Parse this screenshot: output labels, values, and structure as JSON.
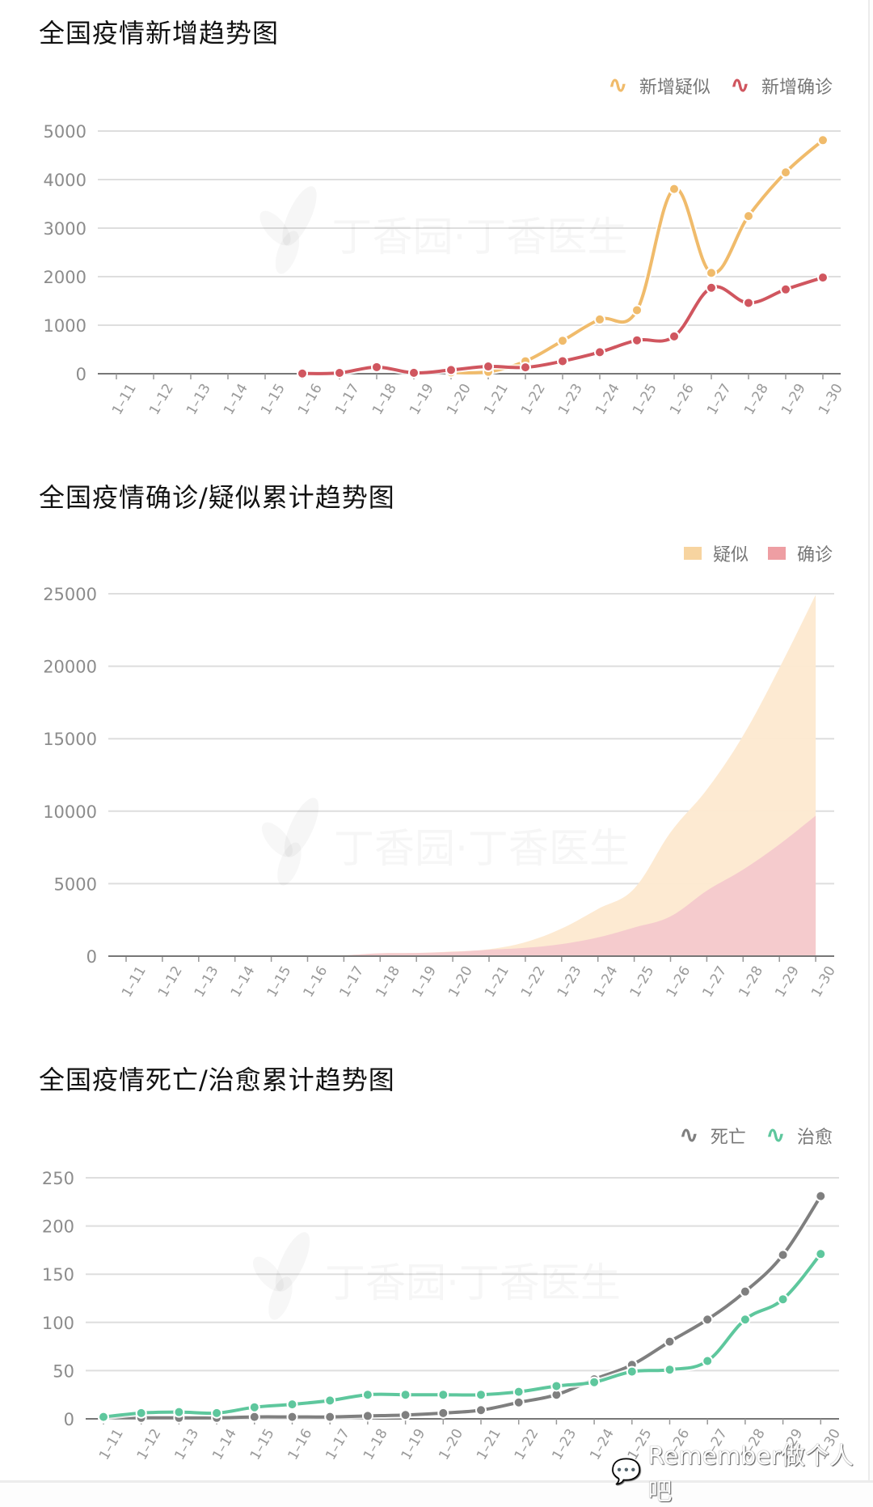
{
  "dates": [
    "1-11",
    "1-12",
    "1-13",
    "1-14",
    "1-15",
    "1-16",
    "1-17",
    "1-18",
    "1-19",
    "1-20",
    "1-21",
    "1-22",
    "1-23",
    "1-24",
    "1-25",
    "1-26",
    "1-27",
    "1-28",
    "1-29",
    "1-30"
  ],
  "watermark": "丁香园·丁香医生",
  "footer_watermark": {
    "icon": "wechat-icon",
    "text": "Remember做个人吧"
  },
  "charts": {
    "new": {
      "title": "全国疫情新增趋势图",
      "legend": [
        {
          "label": "新增疑似",
          "color": "#f0bb6b",
          "icon": "wave-line-icon"
        },
        {
          "label": "新增确诊",
          "color": "#d0565f",
          "icon": "wave-line-icon"
        }
      ],
      "yticks": [
        "5000",
        "4000",
        "3000",
        "2000",
        "1000",
        "0"
      ]
    },
    "cumulative": {
      "title": "全国疫情确诊/疑似累计趋势图",
      "legend": [
        {
          "label": "疑似",
          "color": "#f7d4a0",
          "icon": "square-swatch-icon"
        },
        {
          "label": "确诊",
          "color": "#ee9ea3",
          "icon": "square-swatch-icon"
        }
      ],
      "yticks": [
        "25000",
        "20000",
        "15000",
        "10000",
        "5000",
        "0"
      ]
    },
    "death_cure": {
      "title": "全国疫情死亡/治愈累计趋势图",
      "legend": [
        {
          "label": "死亡",
          "color": "#7f7f7f",
          "icon": "wave-line-icon"
        },
        {
          "label": "治愈",
          "color": "#5ec79d",
          "icon": "wave-line-icon"
        }
      ],
      "yticks": [
        "250",
        "200",
        "150",
        "100",
        "50",
        "0"
      ]
    }
  },
  "chart_data": [
    {
      "type": "line",
      "title": "全国疫情新增趋势图",
      "xlabel": "",
      "ylabel": "",
      "categories": [
        "1-11",
        "1-12",
        "1-13",
        "1-14",
        "1-15",
        "1-16",
        "1-17",
        "1-18",
        "1-19",
        "1-20",
        "1-21",
        "1-22",
        "1-23",
        "1-24",
        "1-25",
        "1-26",
        "1-27",
        "1-28",
        "1-29",
        "1-30"
      ],
      "ylim": [
        0,
        5000
      ],
      "grid": true,
      "legend_position": "top-right",
      "series": [
        {
          "name": "新增疑似",
          "color": "#f0bb6b",
          "smooth": true,
          "values": [
            null,
            null,
            null,
            null,
            null,
            null,
            null,
            null,
            null,
            27,
            39,
            257,
            680,
            1118,
            1309,
            3806,
            2077,
            3248,
            4148,
            4812
          ]
        },
        {
          "name": "新增确诊",
          "color": "#d0565f",
          "smooth": true,
          "values": [
            null,
            null,
            null,
            null,
            null,
            4,
            17,
            136,
            19,
            77,
            149,
            131,
            259,
            444,
            688,
            769,
            1771,
            1459,
            1737,
            1982
          ]
        }
      ]
    },
    {
      "type": "area",
      "stacked": true,
      "title": "全国疫情确诊/疑似累计趋势图",
      "xlabel": "",
      "ylabel": "",
      "categories": [
        "1-11",
        "1-12",
        "1-13",
        "1-14",
        "1-15",
        "1-16",
        "1-17",
        "1-18",
        "1-19",
        "1-20",
        "1-21",
        "1-22",
        "1-23",
        "1-24",
        "1-25",
        "1-26",
        "1-27",
        "1-28",
        "1-29",
        "1-30"
      ],
      "ylim": [
        0,
        25000
      ],
      "grid": true,
      "legend_position": "top-right",
      "series": [
        {
          "name": "确诊",
          "color": "#f4c9cc",
          "values": [
            41,
            41,
            41,
            41,
            41,
            45,
            62,
            198,
            218,
            291,
            440,
            571,
            830,
            1287,
            1975,
            2744,
            4515,
            5974,
            7711,
            9692
          ]
        },
        {
          "name": "疑似",
          "color": "#fde9d0",
          "values": [
            0,
            0,
            0,
            0,
            0,
            0,
            0,
            0,
            0,
            27,
            37,
            393,
            1072,
            1965,
            2684,
            5794,
            6973,
            9239,
            12167,
            15238
          ]
        }
      ]
    },
    {
      "type": "line",
      "title": "全国疫情死亡/治愈累计趋势图",
      "xlabel": "",
      "ylabel": "",
      "categories": [
        "1-11",
        "1-12",
        "1-13",
        "1-14",
        "1-15",
        "1-16",
        "1-17",
        "1-18",
        "1-19",
        "1-20",
        "1-21",
        "1-22",
        "1-23",
        "1-24",
        "1-25",
        "1-26",
        "1-27",
        "1-28",
        "1-29",
        "1-30"
      ],
      "ylim": [
        0,
        250
      ],
      "grid": true,
      "legend_position": "top-right",
      "series": [
        {
          "name": "死亡",
          "color": "#7f7f7f",
          "smooth": true,
          "values": [
            1,
            1,
            1,
            1,
            2,
            2,
            2,
            3,
            4,
            6,
            9,
            17,
            25,
            41,
            56,
            80,
            103,
            132,
            170,
            231
          ]
        },
        {
          "name": "治愈",
          "color": "#5ec79d",
          "smooth": true,
          "values": [
            2,
            6,
            7,
            6,
            12,
            15,
            19,
            25,
            25,
            25,
            25,
            28,
            34,
            38,
            49,
            51,
            60,
            103,
            124,
            171
          ]
        }
      ]
    }
  ]
}
